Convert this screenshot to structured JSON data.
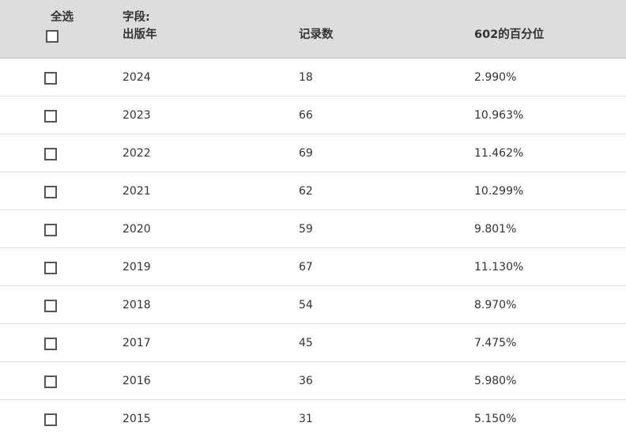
{
  "header": {
    "select_all_label": "全选",
    "field_prefix": "字段:",
    "field_name": "出版年",
    "count_label": "记录数",
    "percent_label": "602的百分位"
  },
  "rows": [
    {
      "year": "2024",
      "count": "18",
      "percent": "2.990%"
    },
    {
      "year": "2023",
      "count": "66",
      "percent": "10.963%"
    },
    {
      "year": "2022",
      "count": "69",
      "percent": "11.462%"
    },
    {
      "year": "2021",
      "count": "62",
      "percent": "10.299%"
    },
    {
      "year": "2020",
      "count": "59",
      "percent": "9.801%"
    },
    {
      "year": "2019",
      "count": "67",
      "percent": "11.130%"
    },
    {
      "year": "2018",
      "count": "54",
      "percent": "8.970%"
    },
    {
      "year": "2017",
      "count": "45",
      "percent": "7.475%"
    },
    {
      "year": "2016",
      "count": "36",
      "percent": "5.980%"
    },
    {
      "year": "2015",
      "count": "31",
      "percent": "5.150%"
    }
  ]
}
